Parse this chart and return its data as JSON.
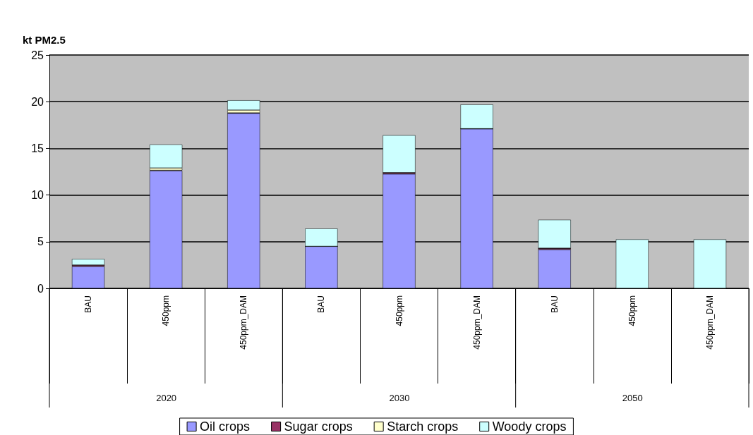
{
  "chart_data": {
    "type": "bar",
    "ylabel": "kt PM2.5",
    "stacked": true,
    "categories": [
      "BAU",
      "450ppm",
      "450ppm_DAM",
      "BAU",
      "450ppm",
      "450ppm_DAM",
      "BAU",
      "450ppm",
      "450ppm_DAM"
    ],
    "annotations": [
      "2020",
      "2030",
      "2050"
    ],
    "series": [
      {
        "name": "Oil crops",
        "color": "#9999ff",
        "values": [
          2.35,
          12.6,
          18.75,
          4.5,
          12.25,
          17.1,
          4.15,
          0,
          0
        ]
      },
      {
        "name": "Sugar crops",
        "color": "#993366",
        "values": [
          0.15,
          0.05,
          0.05,
          0,
          0.15,
          0,
          0.15,
          0,
          0
        ]
      },
      {
        "name": "Starch crops",
        "color": "#ffffcc",
        "values": [
          0,
          0.25,
          0.3,
          0,
          0,
          0,
          0,
          0,
          0
        ]
      },
      {
        "name": "Woody crops",
        "color": "#ccffff",
        "values": [
          0.65,
          2.5,
          1.05,
          1.9,
          4,
          2.6,
          3.05,
          5.25,
          5.25
        ]
      }
    ],
    "ylim": [
      0,
      25
    ],
    "yticks": [
      0,
      5,
      10,
      15,
      20,
      25
    ],
    "grid": "y",
    "legend": "bottom"
  }
}
